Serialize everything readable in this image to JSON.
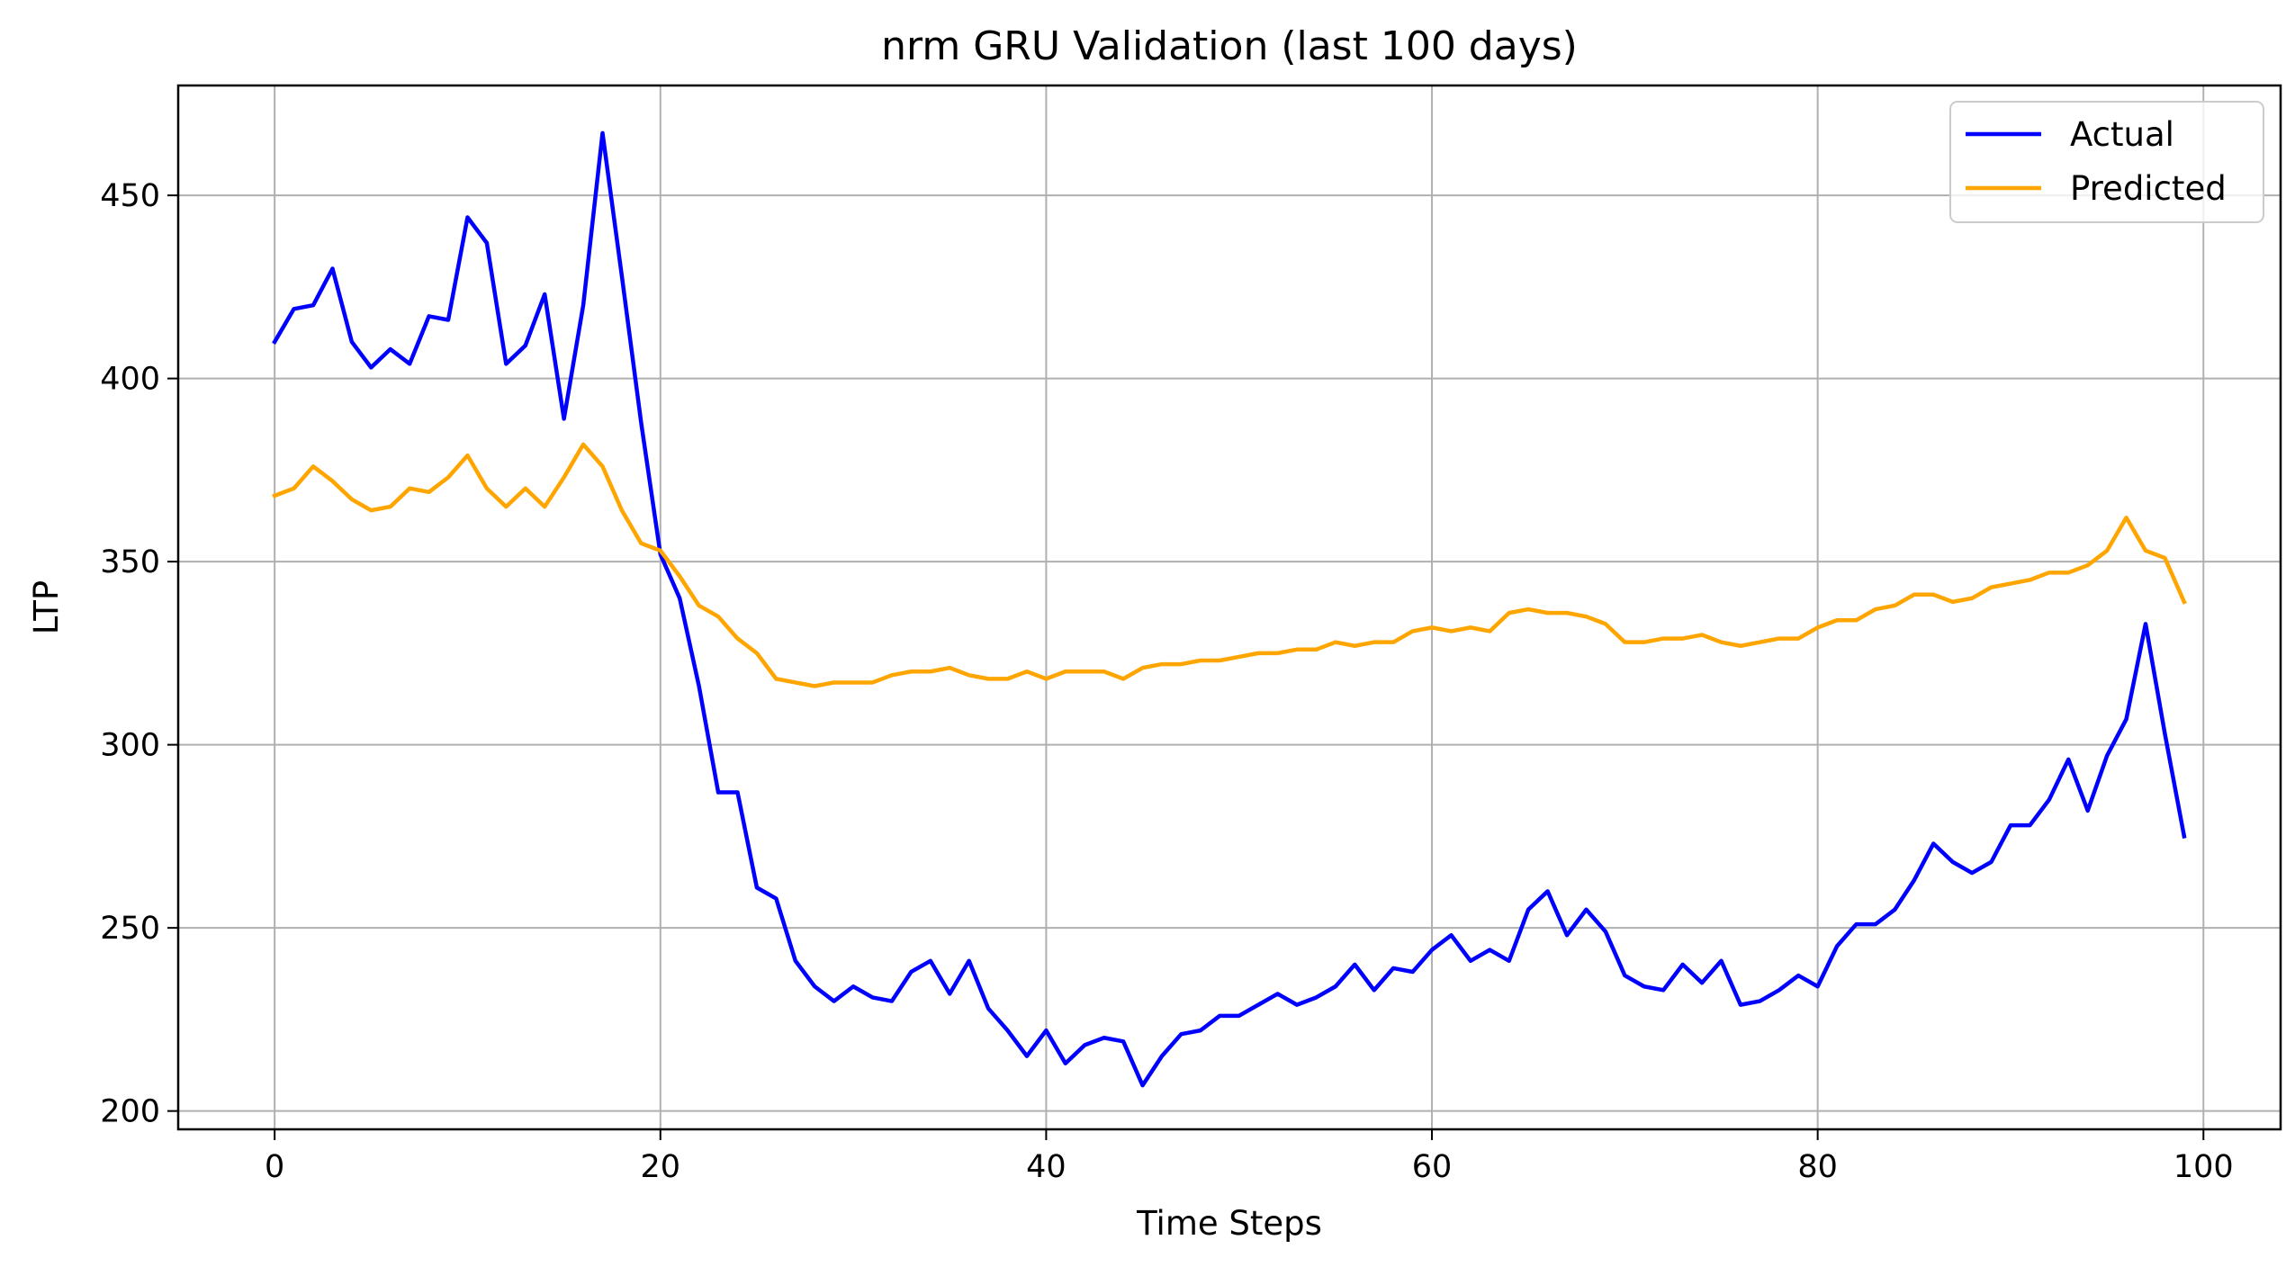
{
  "chart_data": {
    "type": "line",
    "title": "nrm GRU Validation (last 100 days)",
    "xlabel": "Time Steps",
    "ylabel": "LTP",
    "xlim": [
      -5,
      104
    ],
    "ylim": [
      195,
      480
    ],
    "xticks": [
      0,
      20,
      40,
      60,
      80,
      100
    ],
    "yticks": [
      200,
      250,
      300,
      350,
      400,
      450
    ],
    "grid": true,
    "legend_position": "top-right",
    "x": [
      0,
      1,
      2,
      3,
      4,
      5,
      6,
      7,
      8,
      9,
      10,
      11,
      12,
      13,
      14,
      15,
      16,
      17,
      18,
      19,
      20,
      21,
      22,
      23,
      24,
      25,
      26,
      27,
      28,
      29,
      30,
      31,
      32,
      33,
      34,
      35,
      36,
      37,
      38,
      39,
      40,
      41,
      42,
      43,
      44,
      45,
      46,
      47,
      48,
      49,
      50,
      51,
      52,
      53,
      54,
      55,
      56,
      57,
      58,
      59,
      60,
      61,
      62,
      63,
      64,
      65,
      66,
      67,
      68,
      69,
      70,
      71,
      72,
      73,
      74,
      75,
      76,
      77,
      78,
      79,
      80,
      81,
      82,
      83,
      84,
      85,
      86,
      87,
      88,
      89,
      90,
      91,
      92,
      93,
      94,
      95,
      96,
      97,
      98,
      99
    ],
    "series": [
      {
        "name": "Actual",
        "color": "#0000ff",
        "values": [
          410,
          419,
          420,
          430,
          410,
          403,
          408,
          404,
          417,
          416,
          444,
          437,
          404,
          409,
          423,
          389,
          420,
          467,
          428,
          388,
          352,
          340,
          316,
          287,
          287,
          261,
          258,
          241,
          234,
          230,
          234,
          231,
          230,
          238,
          241,
          232,
          241,
          228,
          222,
          215,
          222,
          213,
          218,
          220,
          219,
          207,
          215,
          221,
          222,
          226,
          226,
          229,
          232,
          229,
          231,
          234,
          240,
          233,
          239,
          238,
          244,
          248,
          241,
          244,
          241,
          255,
          260,
          248,
          255,
          249,
          237,
          234,
          233,
          240,
          235,
          241,
          229,
          230,
          233,
          237,
          234,
          245,
          251,
          251,
          255,
          263,
          273,
          268,
          265,
          268,
          278,
          278,
          285,
          296,
          282,
          297,
          307,
          333,
          303,
          275
        ]
      },
      {
        "name": "Predicted",
        "color": "#ffa500",
        "values": [
          368,
          370,
          376,
          372,
          367,
          364,
          365,
          370,
          369,
          373,
          379,
          370,
          365,
          370,
          365,
          373,
          382,
          376,
          364,
          355,
          353,
          346,
          338,
          335,
          329,
          325,
          318,
          317,
          316,
          317,
          317,
          317,
          319,
          320,
          320,
          321,
          319,
          318,
          318,
          320,
          318,
          320,
          320,
          320,
          318,
          321,
          322,
          322,
          323,
          323,
          324,
          325,
          325,
          326,
          326,
          328,
          327,
          328,
          328,
          331,
          332,
          331,
          332,
          331,
          336,
          337,
          336,
          336,
          335,
          333,
          328,
          328,
          329,
          329,
          330,
          328,
          327,
          328,
          329,
          329,
          332,
          334,
          334,
          337,
          338,
          341,
          341,
          339,
          340,
          343,
          344,
          345,
          347,
          347,
          349,
          353,
          362,
          353,
          351,
          339
        ]
      }
    ]
  }
}
